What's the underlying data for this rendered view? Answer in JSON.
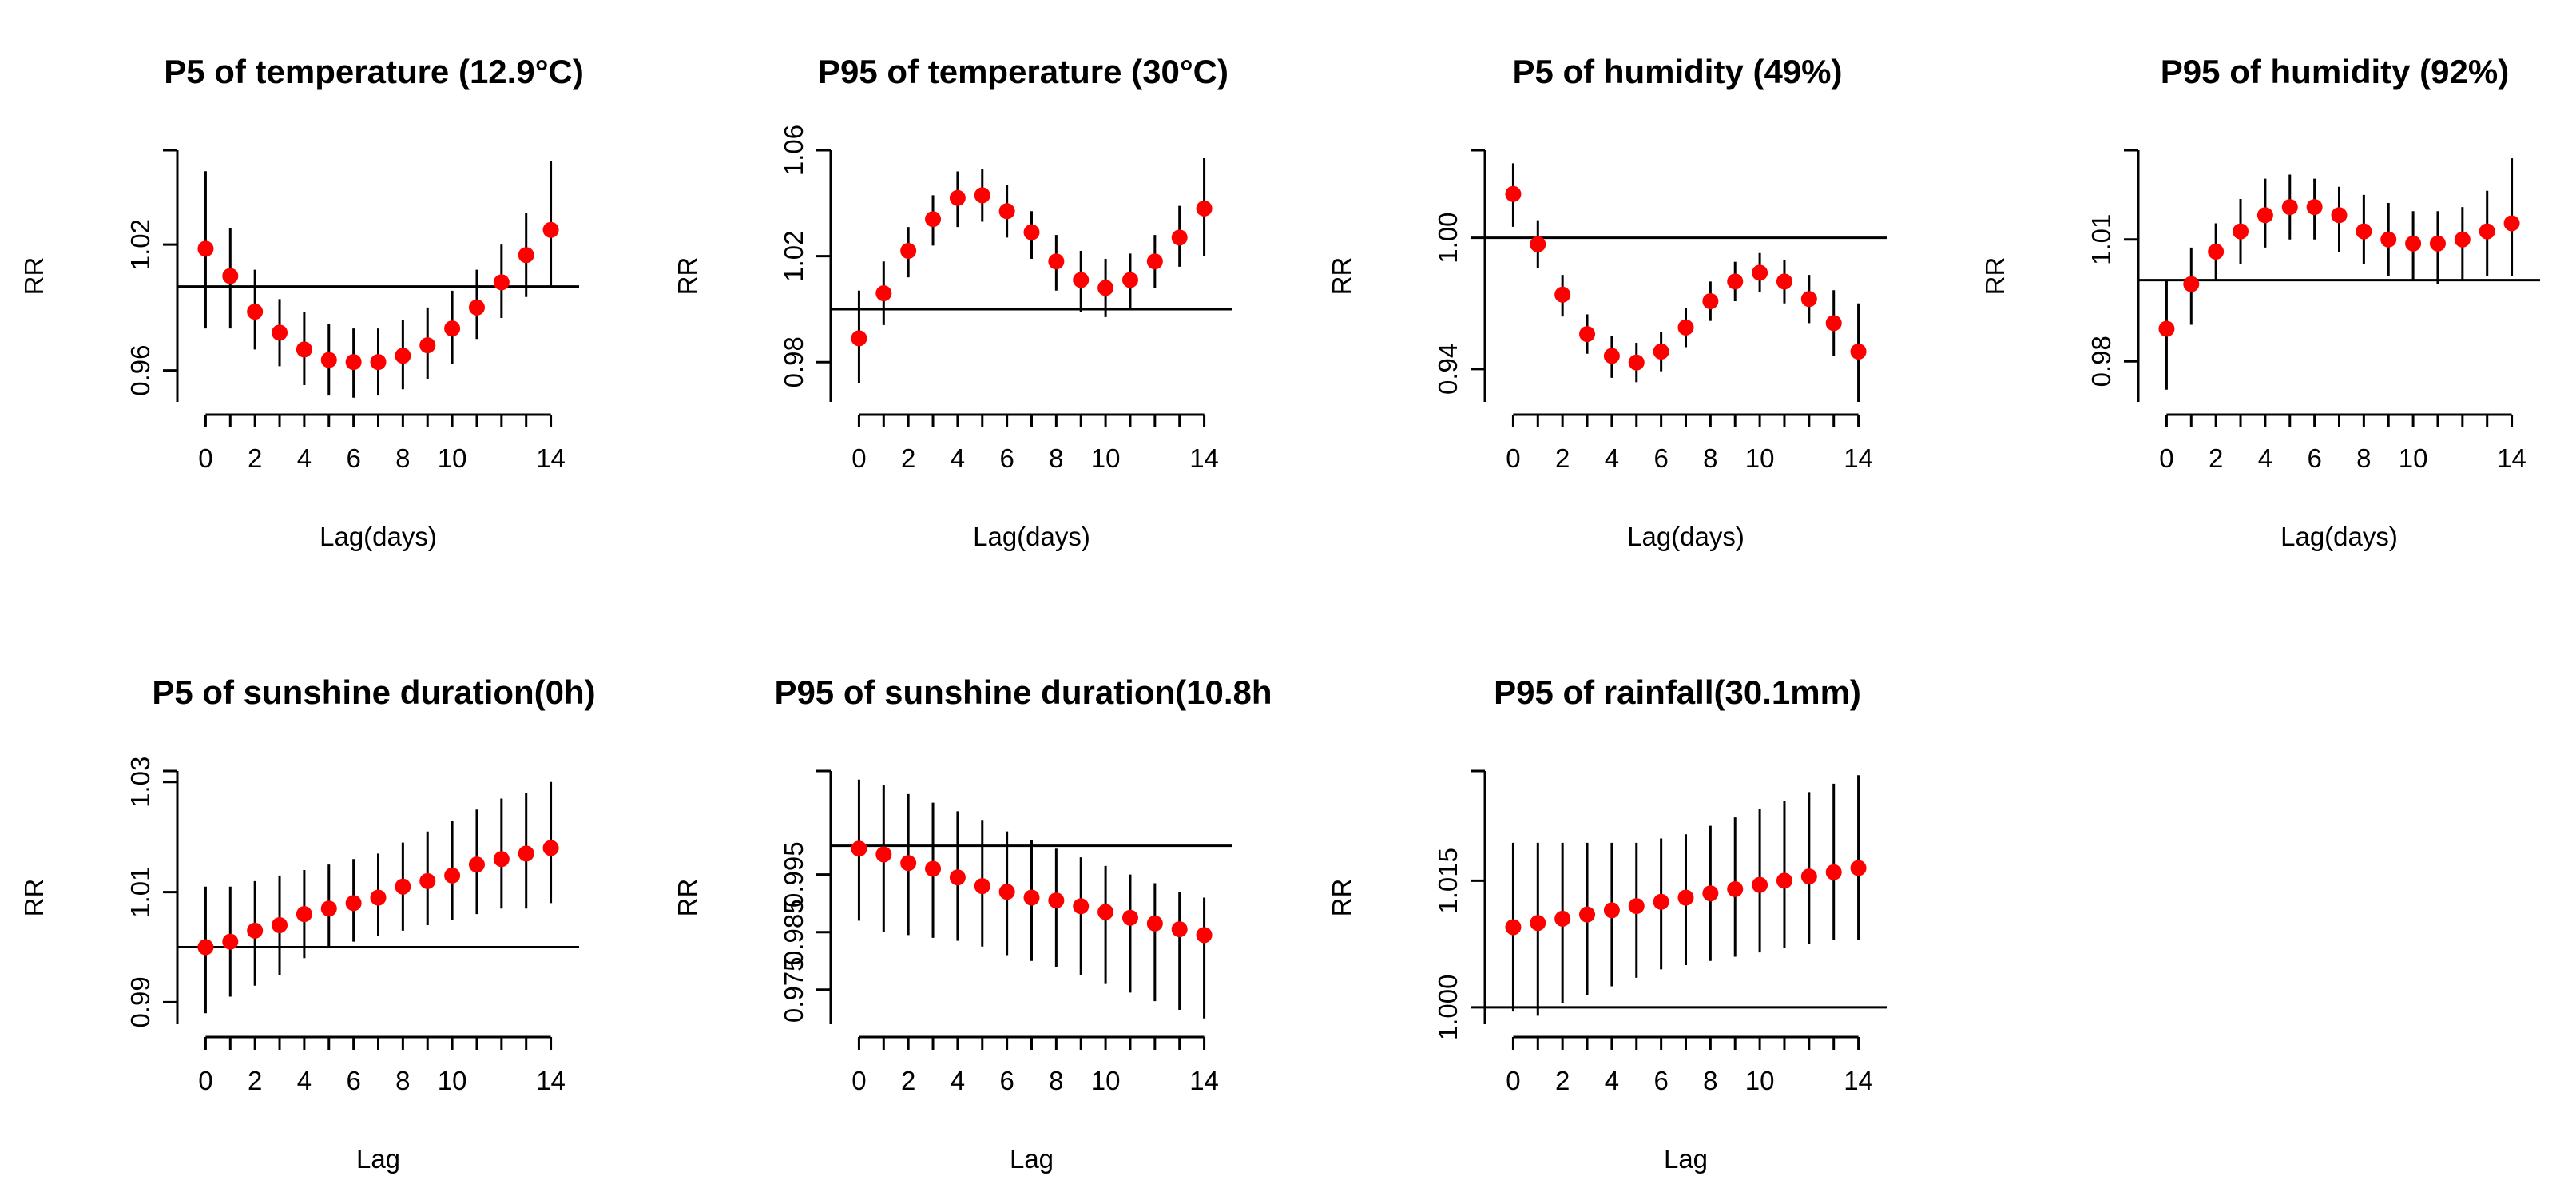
{
  "colors": {
    "point": "#ff0000",
    "line": "#000000",
    "background": "#ffffff"
  },
  "chart_data": [
    {
      "type": "scatter",
      "title": "P5 of temperature (12.9°C)",
      "xlabel": "Lag(days)",
      "ylabel": "RR",
      "x": [
        0,
        1,
        2,
        3,
        4,
        5,
        6,
        7,
        8,
        9,
        10,
        11,
        12,
        13,
        14
      ],
      "rr": [
        1.018,
        1.005,
        0.988,
        0.978,
        0.97,
        0.965,
        0.964,
        0.964,
        0.967,
        0.972,
        0.98,
        0.99,
        1.002,
        1.015,
        1.027
      ],
      "ci_low": [
        0.98,
        0.98,
        0.97,
        0.962,
        0.953,
        0.948,
        0.947,
        0.948,
        0.951,
        0.956,
        0.963,
        0.975,
        0.985,
        0.995,
        1.0
      ],
      "ci_high": [
        1.055,
        1.028,
        1.008,
        0.994,
        0.988,
        0.982,
        0.98,
        0.98,
        0.984,
        0.99,
        0.998,
        1.008,
        1.02,
        1.035,
        1.06
      ],
      "ref": 1.0,
      "xlim": [
        -0.5,
        14.5
      ],
      "ylim": [
        0.945,
        1.065
      ],
      "xticks": [
        0,
        2,
        4,
        6,
        8,
        10,
        14
      ],
      "xtick_labels": [
        "0",
        "2",
        "4",
        "6",
        "8",
        "10",
        "14"
      ],
      "yticks": [
        0.96,
        1.02
      ],
      "ytick_labels": [
        "0.96",
        "1.02"
      ]
    },
    {
      "type": "scatter",
      "title": "P95 of temperature (30°C)",
      "xlabel": "Lag(days)",
      "ylabel": "RR",
      "x": [
        0,
        1,
        2,
        3,
        4,
        5,
        6,
        7,
        8,
        9,
        10,
        11,
        12,
        13,
        14
      ],
      "rr": [
        0.989,
        1.006,
        1.022,
        1.034,
        1.042,
        1.043,
        1.037,
        1.029,
        1.018,
        1.011,
        1.008,
        1.011,
        1.018,
        1.027,
        1.038
      ],
      "ci_low": [
        0.972,
        0.994,
        1.012,
        1.024,
        1.031,
        1.033,
        1.027,
        1.019,
        1.007,
        0.999,
        0.997,
        1.0,
        1.008,
        1.016,
        1.02
      ],
      "ci_high": [
        1.007,
        1.018,
        1.031,
        1.043,
        1.052,
        1.053,
        1.047,
        1.037,
        1.028,
        1.022,
        1.019,
        1.021,
        1.028,
        1.039,
        1.057
      ],
      "ref": 1.0,
      "xlim": [
        -0.5,
        14.5
      ],
      "ylim": [
        0.965,
        1.06
      ],
      "xticks": [
        0,
        2,
        4,
        6,
        8,
        10,
        14
      ],
      "xtick_labels": [
        "0",
        "2",
        "4",
        "6",
        "8",
        "10",
        "14"
      ],
      "yticks": [
        0.98,
        1.02,
        1.06
      ],
      "ytick_labels": [
        "0.98",
        "1.02",
        "1.06"
      ]
    },
    {
      "type": "scatter",
      "title": "P5 of humidity (49%)",
      "xlabel": "Lag(days)",
      "ylabel": "RR",
      "x": [
        0,
        1,
        2,
        3,
        4,
        5,
        6,
        7,
        8,
        9,
        10,
        11,
        12,
        13,
        14
      ],
      "rr": [
        1.02,
        0.997,
        0.974,
        0.956,
        0.946,
        0.943,
        0.948,
        0.959,
        0.971,
        0.98,
        0.984,
        0.98,
        0.972,
        0.961,
        0.948
      ],
      "ci_low": [
        1.005,
        0.986,
        0.964,
        0.947,
        0.936,
        0.934,
        0.939,
        0.95,
        0.962,
        0.971,
        0.975,
        0.97,
        0.961,
        0.946,
        0.925
      ],
      "ci_high": [
        1.034,
        1.008,
        0.983,
        0.965,
        0.955,
        0.952,
        0.957,
        0.968,
        0.98,
        0.989,
        0.993,
        0.99,
        0.983,
        0.976,
        0.97
      ],
      "ref": 1.0,
      "xlim": [
        -0.5,
        14.5
      ],
      "ylim": [
        0.925,
        1.04
      ],
      "xticks": [
        0,
        2,
        4,
        6,
        8,
        10,
        14
      ],
      "xtick_labels": [
        "0",
        "2",
        "4",
        "6",
        "8",
        "10",
        "14"
      ],
      "yticks": [
        0.94,
        1.0
      ],
      "ytick_labels": [
        "0.94",
        "1.00"
      ]
    },
    {
      "type": "scatter",
      "title": "P95 of humidity (92%)",
      "xlabel": "Lag(days)",
      "ylabel": "RR",
      "x": [
        0,
        1,
        2,
        3,
        4,
        5,
        6,
        7,
        8,
        9,
        10,
        11,
        12,
        13,
        14
      ],
      "rr": [
        0.988,
        0.999,
        1.007,
        1.012,
        1.016,
        1.018,
        1.018,
        1.016,
        1.012,
        1.01,
        1.009,
        1.009,
        1.01,
        1.012,
        1.014
      ],
      "ci_low": [
        0.973,
        0.989,
        1.0,
        1.004,
        1.008,
        1.01,
        1.01,
        1.007,
        1.004,
        1.001,
        1.0,
        0.999,
        1.0,
        1.001,
        1.001
      ],
      "ci_high": [
        1.0,
        1.008,
        1.014,
        1.02,
        1.025,
        1.026,
        1.025,
        1.023,
        1.021,
        1.019,
        1.017,
        1.017,
        1.018,
        1.022,
        1.03
      ],
      "ref": 1.0,
      "xlim": [
        -0.5,
        14.5
      ],
      "ylim": [
        0.97,
        1.032
      ],
      "xticks": [
        0,
        2,
        4,
        6,
        8,
        10,
        14
      ],
      "xtick_labels": [
        "0",
        "2",
        "4",
        "6",
        "8",
        "10",
        "14"
      ],
      "yticks": [
        0.98,
        1.01
      ],
      "ytick_labels": [
        "0.98",
        "1.01"
      ]
    },
    {
      "type": "scatter",
      "title": "P5 of sunshine duration(0h)",
      "xlabel": "Lag",
      "ylabel": "RR",
      "x": [
        0,
        1,
        2,
        3,
        4,
        5,
        6,
        7,
        8,
        9,
        10,
        11,
        12,
        13,
        14
      ],
      "rr": [
        1.0,
        1.001,
        1.003,
        1.004,
        1.006,
        1.007,
        1.008,
        1.009,
        1.011,
        1.012,
        1.013,
        1.015,
        1.016,
        1.017,
        1.018
      ],
      "ci_low": [
        0.988,
        0.991,
        0.993,
        0.995,
        0.998,
        1.0,
        1.001,
        1.002,
        1.003,
        1.004,
        1.005,
        1.006,
        1.007,
        1.007,
        1.008
      ],
      "ci_high": [
        1.011,
        1.011,
        1.012,
        1.013,
        1.014,
        1.015,
        1.016,
        1.017,
        1.019,
        1.021,
        1.023,
        1.025,
        1.027,
        1.028,
        1.03
      ],
      "ref": 1.0,
      "xlim": [
        -0.5,
        14.5
      ],
      "ylim": [
        0.986,
        1.032
      ],
      "xticks": [
        0,
        2,
        4,
        6,
        8,
        10,
        14
      ],
      "xtick_labels": [
        "0",
        "2",
        "4",
        "6",
        "8",
        "10",
        "14"
      ],
      "yticks": [
        0.99,
        1.01,
        1.03
      ],
      "ytick_labels": [
        "0.99",
        "1.01",
        "1.03"
      ]
    },
    {
      "type": "scatter",
      "title": "P95 of sunshine duration(10.8h",
      "xlabel": "Lag",
      "ylabel": "RR",
      "x": [
        0,
        1,
        2,
        3,
        4,
        5,
        6,
        7,
        8,
        9,
        10,
        11,
        12,
        13,
        14
      ],
      "rr": [
        0.9995,
        0.9985,
        0.997,
        0.996,
        0.9945,
        0.993,
        0.992,
        0.991,
        0.9905,
        0.9895,
        0.9885,
        0.9875,
        0.9865,
        0.9855,
        0.9845
      ],
      "ci_low": [
        0.987,
        0.985,
        0.9845,
        0.984,
        0.9835,
        0.9825,
        0.981,
        0.98,
        0.979,
        0.9775,
        0.976,
        0.9745,
        0.973,
        0.9715,
        0.97
      ],
      "ci_high": [
        1.0115,
        1.0105,
        1.009,
        1.0075,
        1.006,
        1.0045,
        1.0025,
        1.001,
        0.9995,
        0.998,
        0.9965,
        0.995,
        0.9935,
        0.992,
        0.991
      ],
      "ref": 1.0,
      "xlim": [
        -0.5,
        14.5
      ],
      "ylim": [
        0.969,
        1.013
      ],
      "xticks": [
        0,
        2,
        4,
        6,
        8,
        10,
        14
      ],
      "xtick_labels": [
        "0",
        "2",
        "4",
        "6",
        "8",
        "10",
        "14"
      ],
      "yticks": [
        0.975,
        0.985,
        0.995
      ],
      "ytick_labels": [
        "0.975",
        "0.985",
        "0.995"
      ]
    },
    {
      "type": "scatter",
      "title": "P95 of rainfall(30.1mm)",
      "xlabel": "Lag",
      "ylabel": "RR",
      "x": [
        0,
        1,
        2,
        3,
        4,
        5,
        6,
        7,
        8,
        9,
        10,
        11,
        12,
        13,
        14
      ],
      "rr": [
        1.0095,
        1.01,
        1.0105,
        1.011,
        1.0115,
        1.012,
        1.0125,
        1.013,
        1.0135,
        1.014,
        1.0145,
        1.015,
        1.0155,
        1.016,
        1.0165
      ],
      "ci_low": [
        0.9995,
        0.999,
        1.0005,
        1.0015,
        1.0025,
        1.0035,
        1.0045,
        1.005,
        1.0055,
        1.006,
        1.0065,
        1.007,
        1.0075,
        1.008,
        1.008
      ],
      "ci_high": [
        1.0195,
        1.0195,
        1.0195,
        1.0195,
        1.0195,
        1.0195,
        1.02,
        1.0205,
        1.0215,
        1.0225,
        1.0235,
        1.0245,
        1.0255,
        1.0265,
        1.0275
      ],
      "ref": 1.0,
      "xlim": [
        -0.5,
        14.5
      ],
      "ylim": [
        0.998,
        1.028
      ],
      "xticks": [
        0,
        2,
        4,
        6,
        8,
        10,
        14
      ],
      "xtick_labels": [
        "0",
        "2",
        "4",
        "6",
        "8",
        "10",
        "14"
      ],
      "yticks": [
        1.0,
        1.015
      ],
      "ytick_labels": [
        "1.000",
        "1.015"
      ]
    }
  ]
}
